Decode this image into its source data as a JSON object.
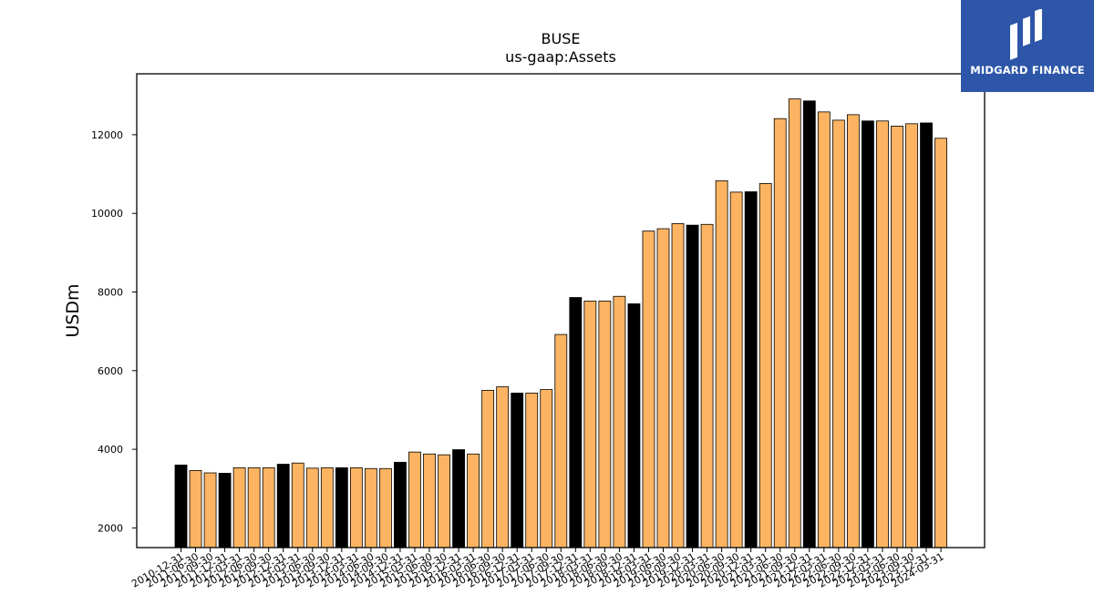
{
  "chart_data": {
    "type": "bar",
    "title": "BUSE",
    "subtitle": "us-gaap:Assets",
    "ylabel": "USDm",
    "xlabel": "",
    "ylim": [
      1500,
      13550
    ],
    "yticks": [
      2000,
      4000,
      6000,
      8000,
      10000,
      12000
    ],
    "grid": false,
    "colors": {
      "annual": "#000000",
      "quarterly": "#fdb462",
      "edge": "#000000"
    },
    "categories": [
      "2010-12-31",
      "2011-06-30",
      "2011-09-30",
      "2011-12-31",
      "2012-03-31",
      "2012-06-30",
      "2012-09-30",
      "2012-12-31",
      "2013-03-31",
      "2013-06-30",
      "2013-09-30",
      "2013-12-31",
      "2014-03-31",
      "2014-06-30",
      "2014-09-30",
      "2014-12-31",
      "2015-03-31",
      "2015-06-30",
      "2015-09-30",
      "2015-12-31",
      "2016-03-31",
      "2016-06-30",
      "2016-09-30",
      "2016-12-31",
      "2017-03-31",
      "2017-06-30",
      "2017-09-30",
      "2017-12-31",
      "2018-03-31",
      "2018-06-30",
      "2018-09-30",
      "2018-12-31",
      "2019-03-31",
      "2019-06-30",
      "2019-09-30",
      "2019-12-31",
      "2020-03-31",
      "2020-06-30",
      "2020-09-30",
      "2020-12-31",
      "2021-03-31",
      "2021-06-30",
      "2021-09-30",
      "2021-12-31",
      "2022-03-31",
      "2022-06-30",
      "2022-09-30",
      "2022-12-31",
      "2023-03-31",
      "2023-06-30",
      "2023-09-30",
      "2023-12-31",
      "2024-03-31"
    ],
    "values": [
      3600,
      3460,
      3400,
      3390,
      3530,
      3530,
      3530,
      3620,
      3650,
      3520,
      3530,
      3530,
      3530,
      3510,
      3510,
      3670,
      3930,
      3880,
      3860,
      3990,
      3880,
      5500,
      5590,
      5430,
      5430,
      5520,
      6920,
      7860,
      7770,
      7770,
      7890,
      7700,
      9550,
      9610,
      9740,
      9700,
      9720,
      10830,
      10540,
      10550,
      10760,
      12410,
      12910,
      12860,
      12580,
      12370,
      12510,
      12350,
      12350,
      12220,
      12280,
      12300,
      11910
    ],
    "annual_flags": [
      1,
      0,
      0,
      1,
      0,
      0,
      0,
      1,
      0,
      0,
      0,
      1,
      0,
      0,
      0,
      1,
      0,
      0,
      0,
      1,
      0,
      0,
      0,
      1,
      0,
      0,
      0,
      1,
      0,
      0,
      0,
      1,
      0,
      0,
      0,
      1,
      0,
      0,
      0,
      1,
      0,
      0,
      0,
      1,
      0,
      0,
      0,
      1,
      0,
      0,
      0,
      1,
      0
    ]
  },
  "logo": {
    "text": "MIDGARD FINANCE"
  }
}
